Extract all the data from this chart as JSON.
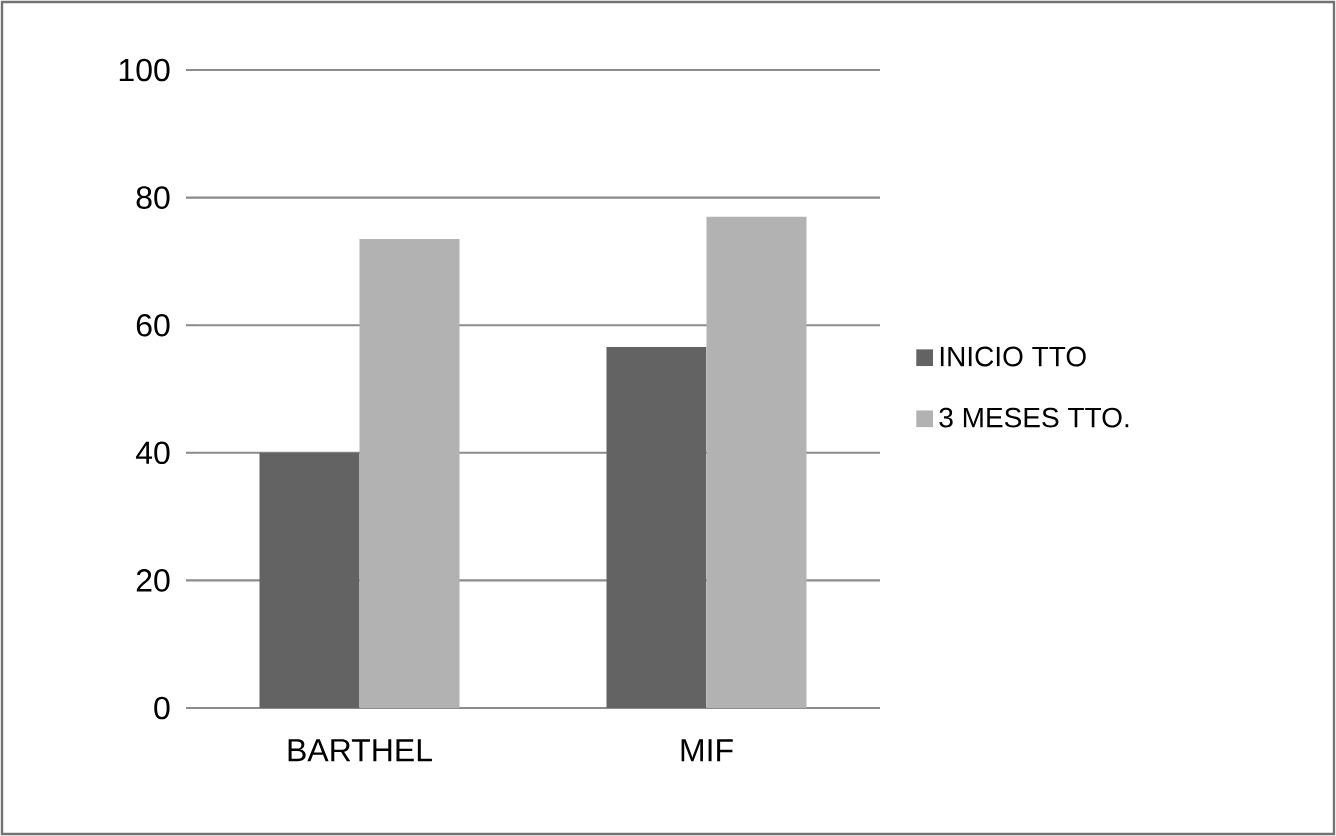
{
  "chart_data": {
    "type": "bar",
    "categories": [
      "BARTHEL",
      "MIF"
    ],
    "series": [
      {
        "name": "INICIO TTO",
        "color": "#636363",
        "values": [
          40,
          56.6
        ]
      },
      {
        "name": "3 MESES TTO.",
        "color": "#b2b2b2",
        "values": [
          73.5,
          77
        ]
      }
    ],
    "ylim": [
      0,
      100
    ],
    "yticks": [
      0,
      20,
      40,
      60,
      80,
      100
    ],
    "grid": "y",
    "legend": "right"
  }
}
